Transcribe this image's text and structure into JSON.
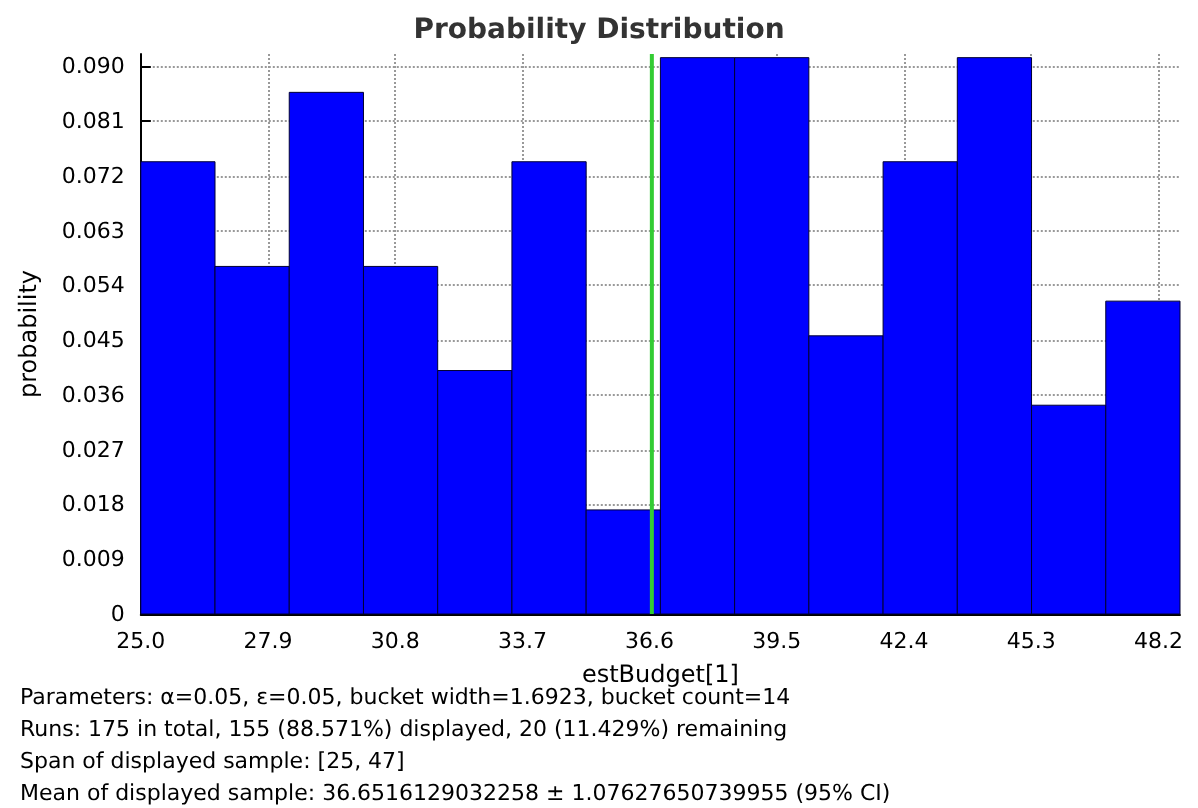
{
  "chart_data": {
    "type": "histogram",
    "title": "Probability Distribution",
    "xlabel": "estBudget[1]",
    "ylabel": "probability",
    "bins": [
      25,
      26.6923,
      28.3846,
      30.0769,
      31.7692,
      33.4615,
      35.1538,
      36.8462,
      38.5385,
      40.2308,
      41.9231,
      43.6154,
      45.3077,
      47.0,
      48.6923
    ],
    "values": [
      0.0743,
      0.0571,
      0.0857,
      0.0571,
      0.04,
      0.0743,
      0.0171,
      0.0914,
      0.0914,
      0.0457,
      0.0743,
      0.0914,
      0.0343,
      0.0514
    ],
    "color": "#0000ff",
    "xlim": [
      25,
      48.6923
    ],
    "xticks": [
      {
        "value": 25,
        "label": "25.0"
      },
      27.9,
      30.8,
      33.7,
      36.6,
      39.5,
      42.4,
      45.3,
      48.2
    ],
    "ylim": [
      0,
      0.092
    ],
    "yticks": [
      0,
      0.009,
      0.018,
      0.027,
      0.036,
      0.045,
      0.054,
      0.063,
      0.072,
      0.081,
      {
        "value": 0.09,
        "label": "0.090"
      }
    ],
    "grid": true,
    "ref_lines": [
      {
        "axis": "x",
        "value": 36.6516,
        "color": "#33cc33"
      }
    ],
    "annotations": [
      "Parameters: α=0.05, ε=0.05, bucket width=1.6923, bucket count=14",
      "Runs: 175 in total, 155 (88.571%) displayed, 20 (11.429%) remaining",
      "Span of displayed sample: [25, 47]",
      "Mean of displayed sample: 36.6516129032258 ± 1.07627650739955 (95% CI)"
    ]
  }
}
